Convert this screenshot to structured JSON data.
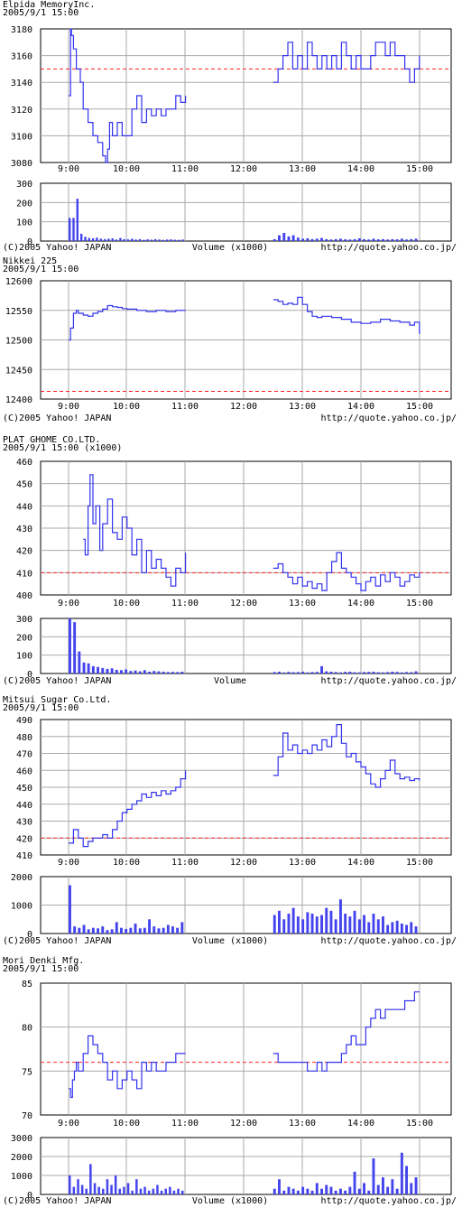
{
  "common": {
    "date": "2005/9/1 15:00",
    "copyright": "(C)2005 Yahoo! JAPAN",
    "url": "http://quote.yahoo.co.jp/",
    "time_ticks": [
      "9:00",
      "10:00",
      "11:00",
      "12:00",
      "13:00",
      "14:00",
      "15:00"
    ],
    "colors": {
      "price_line": "#3333ee",
      "volume_bar": "#4444ee",
      "reference_line": "#ff2222",
      "grid": "#aaaaaa"
    }
  },
  "chart_data": [
    {
      "type": "line",
      "title": "Elpida  MemoryInc.",
      "subtitle": "2005/9/1 15:00",
      "xlim": [
        "9:00",
        "15:00"
      ],
      "ylim": [
        3080,
        3180
      ],
      "y_ticks": [
        3080,
        3100,
        3120,
        3140,
        3160,
        3180
      ],
      "reference_line": 3150,
      "series": [
        {
          "session": "morning",
          "x": [
            "9:00",
            "9:02",
            "9:03",
            "9:05",
            "9:08",
            "9:12",
            "9:15",
            "9:20",
            "9:25",
            "9:30",
            "9:35",
            "9:38",
            "9:40",
            "9:42",
            "9:45",
            "9:50",
            "9:55",
            "10:00",
            "10:05",
            "10:10",
            "10:15",
            "10:20",
            "10:25",
            "10:30",
            "10:35",
            "10:40",
            "10:45",
            "10:50",
            "10:55",
            "11:00"
          ],
          "y": [
            3130,
            3180,
            3175,
            3165,
            3150,
            3140,
            3120,
            3110,
            3100,
            3095,
            3085,
            3080,
            3090,
            3110,
            3100,
            3110,
            3100,
            3100,
            3120,
            3130,
            3110,
            3120,
            3115,
            3120,
            3115,
            3120,
            3120,
            3130,
            3125,
            3130
          ]
        },
        {
          "session": "afternoon",
          "x": [
            "12:30",
            "12:35",
            "12:40",
            "12:45",
            "12:50",
            "12:55",
            "13:00",
            "13:05",
            "13:10",
            "13:15",
            "13:20",
            "13:25",
            "13:30",
            "13:35",
            "13:40",
            "13:45",
            "13:50",
            "13:55",
            "14:00",
            "14:05",
            "14:10",
            "14:15",
            "14:20",
            "14:25",
            "14:30",
            "14:35",
            "14:40",
            "14:45",
            "14:50",
            "14:55",
            "15:00"
          ],
          "y": [
            3140,
            3150,
            3160,
            3170,
            3150,
            3160,
            3150,
            3170,
            3160,
            3150,
            3160,
            3150,
            3160,
            3150,
            3170,
            3160,
            3150,
            3160,
            3150,
            3150,
            3160,
            3170,
            3170,
            3160,
            3170,
            3160,
            3160,
            3150,
            3140,
            3150,
            3160
          ]
        }
      ],
      "volume": {
        "label": "Volume (x1000)",
        "ylim": [
          0,
          300
        ],
        "y_ticks": [
          0,
          100,
          200,
          300
        ],
        "morning": [
          120,
          120,
          220,
          38,
          22,
          16,
          14,
          18,
          12,
          10,
          12,
          14,
          8,
          16,
          10,
          9,
          12,
          8,
          10,
          6,
          9,
          7,
          10,
          8,
          6,
          8,
          9,
          7,
          6,
          8
        ],
        "afternoon": [
          10,
          30,
          42,
          24,
          30,
          18,
          12,
          14,
          10,
          12,
          16,
          10,
          8,
          10,
          12,
          9,
          8,
          10,
          14,
          10,
          8,
          12,
          9,
          10,
          8,
          10,
          9,
          12,
          8,
          10,
          12
        ]
      }
    },
    {
      "type": "line",
      "title": "Nikkei 225",
      "subtitle": "2005/9/1 15:00",
      "xlim": [
        "9:00",
        "15:00"
      ],
      "ylim": [
        12400,
        12600
      ],
      "y_ticks": [
        12400,
        12450,
        12500,
        12550,
        12600
      ],
      "reference_line": 12413,
      "series": [
        {
          "session": "morning",
          "x": [
            "9:00",
            "9:02",
            "9:05",
            "9:08",
            "9:10",
            "9:15",
            "9:20",
            "9:25",
            "9:30",
            "9:35",
            "9:40",
            "9:45",
            "9:50",
            "9:55",
            "10:00",
            "10:10",
            "10:20",
            "10:30",
            "10:40",
            "10:50",
            "11:00"
          ],
          "y": [
            12500,
            12520,
            12545,
            12550,
            12545,
            12542,
            12540,
            12545,
            12548,
            12552,
            12558,
            12556,
            12555,
            12553,
            12552,
            12550,
            12548,
            12550,
            12548,
            12550,
            12550
          ]
        },
        {
          "session": "afternoon",
          "x": [
            "12:30",
            "12:35",
            "12:40",
            "12:45",
            "12:50",
            "12:55",
            "13:00",
            "13:05",
            "13:10",
            "13:15",
            "13:20",
            "13:30",
            "13:40",
            "13:50",
            "14:00",
            "14:10",
            "14:20",
            "14:30",
            "14:40",
            "14:50",
            "14:55",
            "15:00"
          ],
          "y": [
            12568,
            12565,
            12560,
            12562,
            12560,
            12572,
            12560,
            12548,
            12540,
            12538,
            12540,
            12538,
            12535,
            12530,
            12528,
            12530,
            12535,
            12532,
            12530,
            12525,
            12530,
            12510
          ]
        }
      ]
    },
    {
      "type": "line",
      "title": "PLAT GHOME  CO.LTD.",
      "subtitle": "2005/9/1 15:00  (x1000)",
      "xlim": [
        "9:00",
        "15:00"
      ],
      "ylim": [
        400,
        460
      ],
      "y_ticks": [
        400,
        410,
        420,
        430,
        440,
        450,
        460
      ],
      "reference_line": 410,
      "series": [
        {
          "session": "morning",
          "x": [
            "9:15",
            "9:17",
            "9:20",
            "9:22",
            "9:25",
            "9:28",
            "9:32",
            "9:35",
            "9:40",
            "9:45",
            "9:50",
            "9:55",
            "10:00",
            "10:05",
            "10:10",
            "10:15",
            "10:20",
            "10:25",
            "10:30",
            "10:35",
            "10:40",
            "10:45",
            "10:50",
            "10:55",
            "11:00"
          ],
          "y": [
            425,
            418,
            440,
            454,
            432,
            440,
            420,
            432,
            443,
            428,
            425,
            435,
            430,
            418,
            425,
            410,
            420,
            412,
            416,
            412,
            408,
            404,
            412,
            410,
            419
          ]
        },
        {
          "session": "afternoon",
          "x": [
            "12:30",
            "12:35",
            "12:40",
            "12:45",
            "12:50",
            "12:55",
            "13:00",
            "13:05",
            "13:10",
            "13:15",
            "13:20",
            "13:25",
            "13:30",
            "13:35",
            "13:40",
            "13:45",
            "13:50",
            "13:55",
            "14:00",
            "14:05",
            "14:10",
            "14:15",
            "14:20",
            "14:25",
            "14:30",
            "14:35",
            "14:40",
            "14:45",
            "14:50",
            "14:55",
            "15:00"
          ],
          "y": [
            412,
            414,
            410,
            408,
            405,
            408,
            404,
            406,
            403,
            405,
            402,
            410,
            415,
            419,
            412,
            410,
            408,
            405,
            402,
            406,
            408,
            404,
            409,
            406,
            410,
            408,
            404,
            406,
            409,
            408,
            410
          ]
        }
      ],
      "volume": {
        "label": "Volume",
        "ylim": [
          0,
          300
        ],
        "y_ticks": [
          0,
          100,
          200,
          300
        ],
        "morning": [
          300,
          280,
          120,
          60,
          55,
          40,
          36,
          30,
          25,
          28,
          20,
          18,
          22,
          14,
          16,
          12,
          18,
          10,
          14,
          12,
          10,
          8,
          9,
          8,
          10
        ],
        "afternoon": [
          8,
          10,
          6,
          9,
          7,
          8,
          10,
          6,
          8,
          9,
          40,
          12,
          10,
          8,
          6,
          9,
          10,
          7,
          6,
          8,
          9,
          10,
          7,
          6,
          8,
          10,
          9,
          6,
          8,
          7,
          12
        ]
      }
    },
    {
      "type": "line",
      "title": "Mitsui  Sugar  Co.Ltd.",
      "subtitle": "2005/9/1 15:00",
      "xlim": [
        "9:00",
        "15:00"
      ],
      "ylim": [
        410,
        490
      ],
      "y_ticks": [
        410,
        420,
        430,
        440,
        450,
        460,
        470,
        480,
        490
      ],
      "reference_line": 420,
      "series": [
        {
          "session": "morning",
          "x": [
            "9:00",
            "9:05",
            "9:10",
            "9:15",
            "9:20",
            "9:25",
            "9:30",
            "9:35",
            "9:40",
            "9:45",
            "9:50",
            "9:55",
            "10:00",
            "10:05",
            "10:10",
            "10:15",
            "10:20",
            "10:25",
            "10:30",
            "10:35",
            "10:40",
            "10:45",
            "10:50",
            "10:55",
            "11:00"
          ],
          "y": [
            417,
            425,
            420,
            415,
            418,
            420,
            420,
            422,
            420,
            425,
            430,
            435,
            437,
            440,
            442,
            446,
            444,
            447,
            445,
            448,
            446,
            448,
            450,
            455,
            460
          ]
        },
        {
          "session": "afternoon",
          "x": [
            "12:30",
            "12:35",
            "12:40",
            "12:45",
            "12:50",
            "12:55",
            "13:00",
            "13:05",
            "13:10",
            "13:15",
            "13:20",
            "13:25",
            "13:30",
            "13:35",
            "13:40",
            "13:45",
            "13:50",
            "13:55",
            "14:00",
            "14:05",
            "14:10",
            "14:15",
            "14:20",
            "14:25",
            "14:30",
            "14:35",
            "14:40",
            "14:45",
            "14:50",
            "14:55",
            "15:00"
          ],
          "y": [
            457,
            468,
            482,
            472,
            475,
            470,
            472,
            470,
            475,
            472,
            478,
            474,
            480,
            487,
            476,
            468,
            470,
            465,
            462,
            458,
            452,
            450,
            455,
            460,
            466,
            458,
            455,
            456,
            454,
            455,
            454
          ]
        }
      ],
      "volume": {
        "label": "Volume (x1000)",
        "ylim": [
          0,
          2000
        ],
        "y_ticks": [
          0,
          1000,
          2000
        ],
        "morning": [
          1700,
          250,
          200,
          300,
          150,
          200,
          180,
          250,
          120,
          150,
          400,
          200,
          160,
          200,
          350,
          180,
          200,
          500,
          250,
          180,
          200,
          300,
          250,
          200,
          400
        ],
        "afternoon": [
          650,
          800,
          500,
          700,
          900,
          600,
          500,
          750,
          700,
          600,
          650,
          900,
          800,
          500,
          1200,
          700,
          600,
          800,
          500,
          650,
          400,
          700,
          500,
          600,
          300,
          400,
          450,
          350,
          300,
          400,
          250
        ]
      }
    },
    {
      "type": "line",
      "title": "Mori  Denki  Mfg.",
      "subtitle": "2005/9/1 15:00",
      "xlim": [
        "9:00",
        "15:00"
      ],
      "ylim": [
        70,
        85
      ],
      "y_ticks": [
        70,
        75,
        80,
        85
      ],
      "reference_line": 76,
      "series": [
        {
          "session": "morning",
          "x": [
            "9:00",
            "9:02",
            "9:04",
            "9:06",
            "9:08",
            "9:10",
            "9:15",
            "9:20",
            "9:25",
            "9:30",
            "9:35",
            "9:40",
            "9:45",
            "9:50",
            "9:55",
            "10:00",
            "10:05",
            "10:10",
            "10:15",
            "10:20",
            "10:25",
            "10:30",
            "10:35",
            "10:40",
            "10:45",
            "10:50",
            "10:55",
            "11:00"
          ],
          "y": [
            73,
            72,
            74,
            75,
            76,
            75,
            77,
            79,
            78,
            77,
            76,
            74,
            75,
            73,
            74,
            75,
            74,
            73,
            76,
            75,
            76,
            75,
            75,
            76,
            76,
            77,
            77,
            77
          ]
        },
        {
          "session": "afternoon",
          "x": [
            "12:30",
            "12:35",
            "12:40",
            "12:45",
            "12:50",
            "12:55",
            "13:00",
            "13:05",
            "13:10",
            "13:15",
            "13:20",
            "13:25",
            "13:30",
            "13:35",
            "13:40",
            "13:45",
            "13:50",
            "13:55",
            "14:00",
            "14:05",
            "14:10",
            "14:15",
            "14:20",
            "14:25",
            "14:30",
            "14:35",
            "14:40",
            "14:45",
            "14:50",
            "14:55",
            "15:00"
          ],
          "y": [
            77,
            76,
            76,
            76,
            76,
            76,
            76,
            75,
            75,
            76,
            75,
            76,
            76,
            76,
            77,
            78,
            79,
            78,
            78,
            80,
            81,
            82,
            81,
            82,
            82,
            82,
            82,
            83,
            83,
            84,
            84
          ]
        }
      ],
      "volume": {
        "label": "Volume (x1000)",
        "ylim": [
          0,
          3000
        ],
        "y_ticks": [
          0,
          1000,
          2000,
          3000
        ],
        "morning": [
          1000,
          400,
          800,
          500,
          300,
          1600,
          600,
          400,
          300,
          800,
          500,
          1000,
          300,
          400,
          600,
          200,
          800,
          300,
          400,
          200,
          300,
          500,
          200,
          300,
          400,
          200,
          300,
          200
        ],
        "afternoon": [
          300,
          800,
          200,
          400,
          300,
          200,
          400,
          300,
          200,
          600,
          300,
          500,
          400,
          200,
          300,
          200,
          400,
          1200,
          300,
          600,
          200,
          1900,
          500,
          900,
          400,
          800,
          300,
          2200,
          1500,
          600,
          900
        ]
      }
    }
  ]
}
